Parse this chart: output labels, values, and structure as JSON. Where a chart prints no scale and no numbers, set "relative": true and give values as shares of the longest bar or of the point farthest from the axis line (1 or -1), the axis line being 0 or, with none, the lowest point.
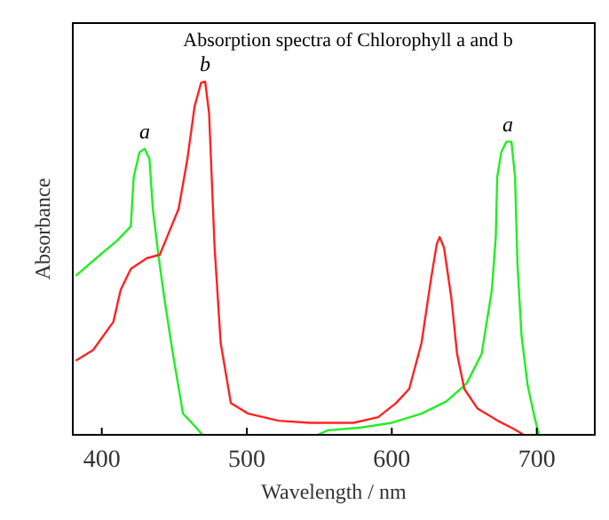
{
  "chart_data": {
    "type": "line",
    "title": "Absorption spectra of Chlorophyll a and b",
    "xlabel": "Wavelength / nm",
    "ylabel": "Absorbance",
    "relative": true,
    "xlim": [
      380,
      740
    ],
    "xticks": [
      400,
      500,
      600,
      700
    ],
    "grid": false,
    "marker": "none",
    "line_style": "solid",
    "series": [
      {
        "color": "#22ee22",
        "x": [
          382,
          399,
          410.6,
          420,
          422,
          426,
          429.6,
          432.9,
          435.2,
          439,
          443,
          449,
          456,
          464,
          469.4,
          509,
          549,
          556,
          578,
          600,
          620.5,
          637.8,
          651.7,
          662,
          669,
          671.7,
          672.7,
          675.5,
          679,
          682.5,
          685,
          686.7,
          689.5,
          693.7,
          697.9,
          701.4
        ],
        "values": [
          0.45,
          0.51,
          0.55,
          0.59,
          0.73,
          0.8,
          0.81,
          0.78,
          0.64,
          0.51,
          0.39,
          0.23,
          0.06,
          0.025,
          0,
          null,
          0,
          0.013,
          0.02,
          0.034,
          0.06,
          0.095,
          0.146,
          0.23,
          0.41,
          0.56,
          0.73,
          0.8,
          0.83,
          0.83,
          0.73,
          0.48,
          0.28,
          0.14,
          0.06,
          0
        ]
      },
      {
        "color": "#ff2222",
        "x": [
          382,
          394,
          408,
          413,
          420,
          431,
          440,
          445,
          453,
          459,
          464,
          468.5,
          471.3,
          474,
          477.8,
          482,
          489,
          501,
          522,
          543.6,
          573.5,
          590.6,
          603,
          612,
          620.5,
          627,
          631,
          633,
          636,
          641,
          645,
          650,
          659,
          673,
          684,
          691
        ],
        "values": [
          0.21,
          0.24,
          0.32,
          0.41,
          0.47,
          0.5,
          0.51,
          0.56,
          0.64,
          0.78,
          0.93,
          0.997,
          1,
          0.91,
          0.53,
          0.26,
          0.09,
          0.06,
          0.04,
          0.034,
          0.034,
          0.05,
          0.09,
          0.13,
          0.26,
          0.44,
          0.54,
          0.56,
          0.53,
          0.39,
          0.23,
          0.13,
          0.075,
          0.04,
          0.017,
          0
        ]
      }
    ],
    "annotations": [
      {
        "text": "a",
        "x": 429.6,
        "y": 0.81
      },
      {
        "text": "b",
        "x": 471.3,
        "y": 1
      },
      {
        "text": "a",
        "x": 680,
        "y": 0.83
      }
    ]
  }
}
